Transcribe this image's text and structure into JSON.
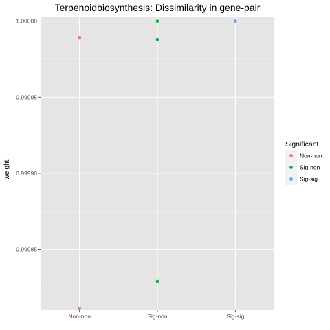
{
  "chart_data": {
    "type": "scatter",
    "title": "Terpenoidbiosynthesis: Dissimilarity in gene-pair",
    "xlabel": "",
    "ylabel": "weight",
    "categories": [
      "Non-non",
      "Sig-non",
      "Sig-sig"
    ],
    "ylim": [
      0.99981,
      1.000003
    ],
    "yticks": [
      0.99985,
      0.9999,
      0.99995,
      1.0
    ],
    "ytick_labels": [
      "0.99985",
      "0.99990",
      "0.99995",
      "1.00000"
    ],
    "grid": true,
    "legend_position": "right",
    "legend_title": "Significant",
    "background": "#e5e5e5",
    "series": [
      {
        "name": "Non-non",
        "color": "#f8766d",
        "points": [
          {
            "x": "Non-non",
            "y": 0.999989
          },
          {
            "x": "Non-non",
            "y": 0.999811
          }
        ]
      },
      {
        "name": "Sig-non",
        "color": "#00ba38",
        "points": [
          {
            "x": "Sig-non",
            "y": 1.0
          },
          {
            "x": "Sig-non",
            "y": 0.999988
          },
          {
            "x": "Sig-non",
            "y": 0.999829
          }
        ]
      },
      {
        "name": "Sig-sig",
        "color": "#619cff",
        "points": [
          {
            "x": "Sig-sig",
            "y": 1.0
          }
        ]
      }
    ]
  }
}
